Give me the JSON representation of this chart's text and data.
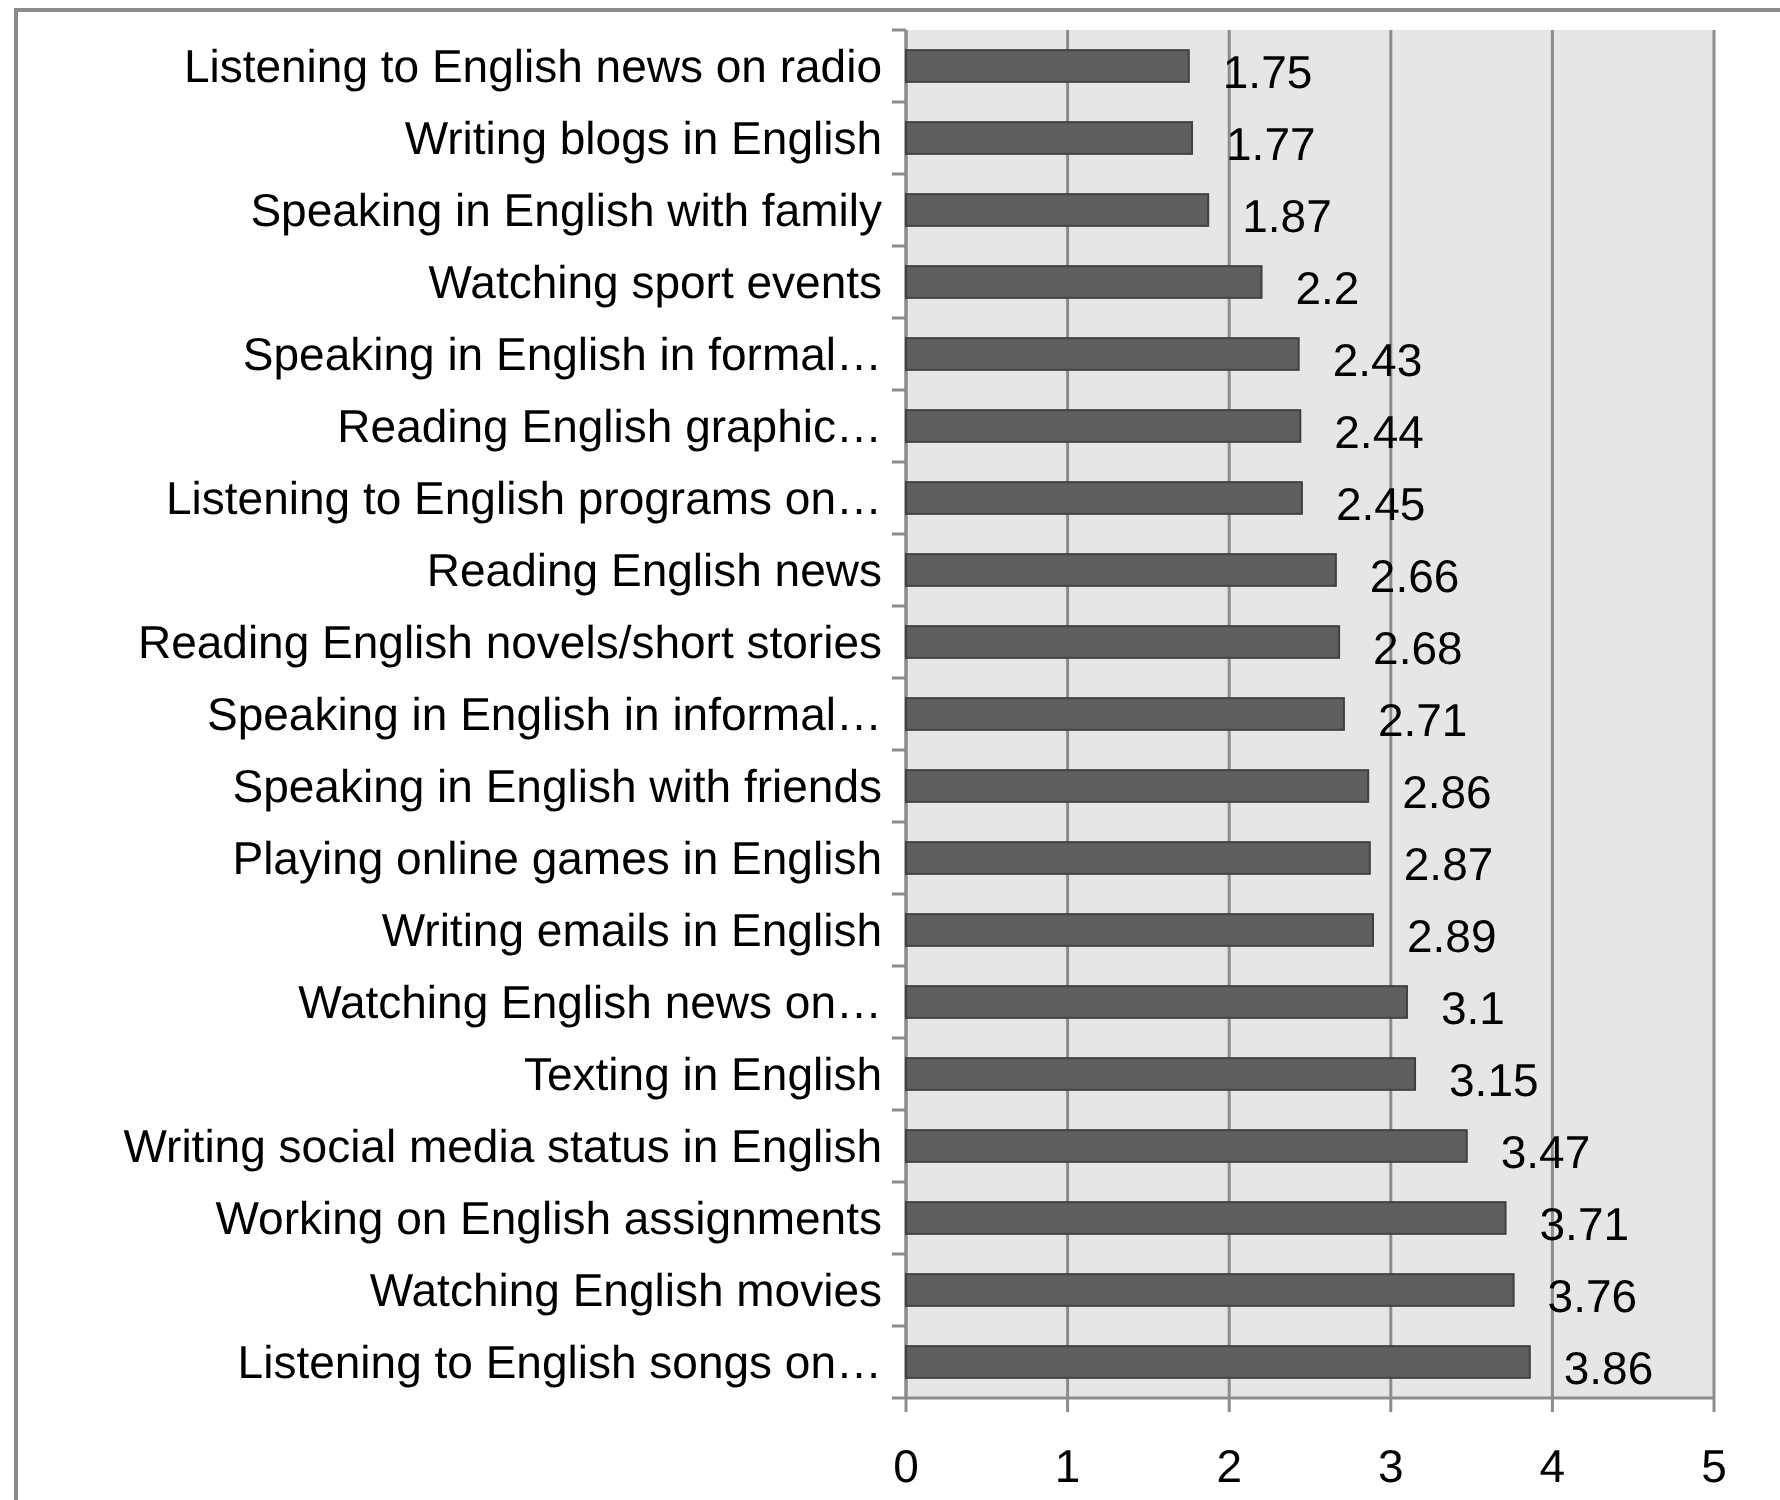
{
  "chart_data": {
    "type": "bar",
    "orientation": "horizontal",
    "categories": [
      "Listening to English news on radio",
      "Writing blogs in English",
      "Speaking in English with family",
      "Watching sport events",
      "Speaking in English in formal…",
      "Reading English graphic…",
      "Listening to English programs on…",
      "Reading English news",
      "Reading English novels/short stories",
      "Speaking in English in informal…",
      "Speaking in English with friends",
      "Playing online games in English",
      "Writing emails in English",
      "Watching English news on…",
      "Texting in English",
      "Writing social media status in English",
      "Working on English assignments",
      "Watching English movies",
      "Listening to English songs on…"
    ],
    "values": [
      1.75,
      1.77,
      1.87,
      2.2,
      2.43,
      2.44,
      2.45,
      2.66,
      2.68,
      2.71,
      2.86,
      2.87,
      2.89,
      3.1,
      3.15,
      3.47,
      3.71,
      3.76,
      3.86
    ],
    "color": "#5f5f5f",
    "xlim": [
      0,
      5
    ],
    "xticks": [
      0,
      1,
      2,
      3,
      4,
      5
    ],
    "grid": "x",
    "data_labels": true
  }
}
